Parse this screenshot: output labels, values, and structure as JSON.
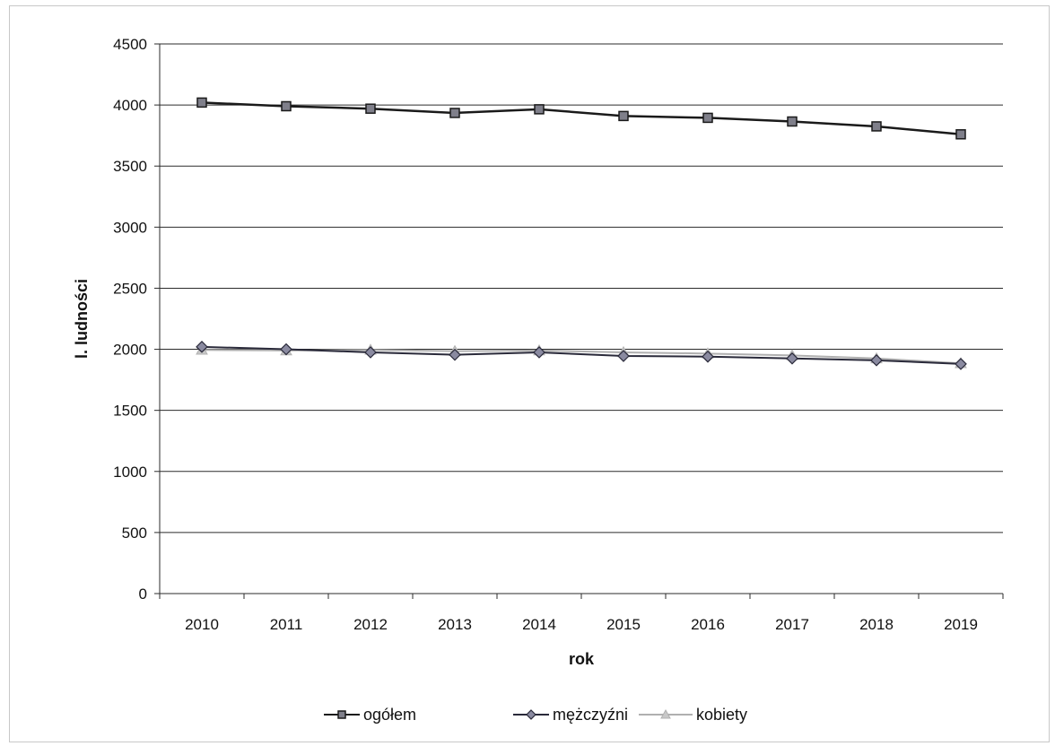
{
  "chart_data": {
    "type": "line",
    "title": "",
    "xlabel": "rok",
    "ylabel": "l. ludności",
    "categories": [
      "2010",
      "2011",
      "2012",
      "2013",
      "2014",
      "2015",
      "2016",
      "2017",
      "2018",
      "2019"
    ],
    "ylim": [
      0,
      4500
    ],
    "yticks": [
      "0",
      "500",
      "1000",
      "1500",
      "2000",
      "2500",
      "3000",
      "3500",
      "4000",
      "4500"
    ],
    "grid": "horizontal",
    "legend": "bottom",
    "series": [
      {
        "name": "ogółem",
        "values": [
          4020,
          3990,
          3970,
          3935,
          3965,
          3910,
          3895,
          3865,
          3825,
          3760
        ],
        "color": "#1a1a1a",
        "marker": "square",
        "marker_color": "#7f7f8a"
      },
      {
        "name": "mężczyźni",
        "values": [
          2020,
          2000,
          1975,
          1955,
          1975,
          1945,
          1940,
          1925,
          1910,
          1880
        ],
        "color": "#2a2a3a",
        "marker": "diamond",
        "marker_color": "#8a8aa0"
      },
      {
        "name": "kobiety",
        "values": [
          1995,
          1990,
          1995,
          1985,
          1990,
          1975,
          1965,
          1950,
          1925,
          1885
        ],
        "color": "#b0b0b0",
        "marker": "triangle",
        "marker_color": "#c8c8c8"
      }
    ]
  }
}
